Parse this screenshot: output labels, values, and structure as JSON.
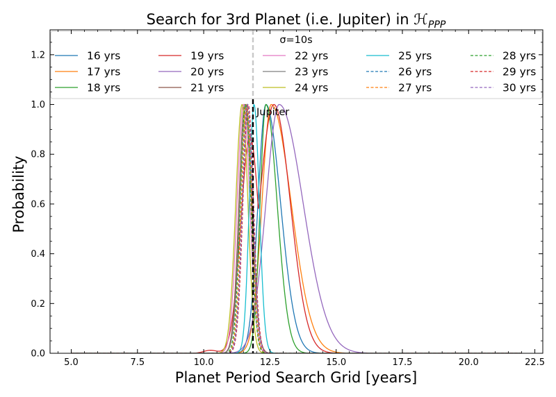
{
  "chart_data": {
    "type": "line",
    "title": "Search for 3rd Planet (i.e. Jupiter) in ",
    "title_math": "ℋ",
    "title_sub": "PPP",
    "xlabel": "Planet Period Search Grid [years]",
    "ylabel": "Probability",
    "xlim": [
      4.2,
      22.8
    ],
    "ylim": [
      0.0,
      1.3
    ],
    "xticks": [
      5.0,
      7.5,
      10.0,
      12.5,
      15.0,
      17.5,
      20.0,
      22.5
    ],
    "xtick_labels": [
      "5.0",
      "7.5",
      "10.0",
      "12.5",
      "15.0",
      "17.5",
      "20.0",
      "22.5"
    ],
    "yticks": [
      0.0,
      0.2,
      0.4,
      0.6,
      0.8,
      1.0,
      1.2
    ],
    "ytick_labels": [
      "0.0",
      "0.2",
      "0.4",
      "0.6",
      "0.8",
      "1.0",
      "1.2"
    ],
    "grid": false,
    "legend_placement": "top",
    "legend_title": "σ=10s",
    "x_range": [
      5.0,
      22.0
    ],
    "vline": {
      "x": 11.86,
      "label": "Jupiter",
      "style": "black dashed"
    },
    "vline_top": {
      "x": 11.86,
      "style": "gray dashed"
    },
    "series": [
      {
        "name": "16 yrs",
        "color": "#1f77b4",
        "dash": "solid",
        "peak": 12.35,
        "width_left": 0.3,
        "width_right": 0.55
      },
      {
        "name": "17 yrs",
        "color": "#ff7f0e",
        "dash": "solid",
        "peak": 12.55,
        "width_left": 0.35,
        "width_right": 0.75
      },
      {
        "name": "18 yrs",
        "color": "#2ca02c",
        "dash": "solid",
        "peak": 12.35,
        "width_left": 0.22,
        "width_right": 0.42
      },
      {
        "name": "19 yrs",
        "color": "#d62728",
        "dash": "solid",
        "peak": 12.65,
        "width_left": 0.55,
        "width_right": 0.62,
        "shoulder": {
          "x": 11.75,
          "h": 0.87,
          "w": 0.35
        },
        "bump": {
          "x": 10.25,
          "h": 0.012,
          "w": 0.25
        }
      },
      {
        "name": "20 yrs",
        "color": "#9467bd",
        "dash": "solid",
        "peak": 12.85,
        "width_left": 0.5,
        "width_right": 0.9
      },
      {
        "name": "21 yrs",
        "color": "#8c564b",
        "dash": "solid",
        "peak": 11.55,
        "width_left": 0.22,
        "width_right": 0.25
      },
      {
        "name": "22 yrs",
        "color": "#e377c2",
        "dash": "solid",
        "peak": 11.5,
        "width_left": 0.24,
        "width_right": 0.24
      },
      {
        "name": "23 yrs",
        "color": "#7f7f7f",
        "dash": "solid",
        "peak": 11.6,
        "width_left": 0.23,
        "width_right": 0.23
      },
      {
        "name": "24 yrs",
        "color": "#bcbd22",
        "dash": "solid",
        "peak": 11.45,
        "width_left": 0.24,
        "width_right": 0.22
      },
      {
        "name": "25 yrs",
        "color": "#17becf",
        "dash": "solid",
        "peak": 11.9,
        "width_left": 0.18,
        "width_right": 0.2
      },
      {
        "name": "26 yrs",
        "color": "#1f77b4",
        "dash": "dashed",
        "peak": 11.65,
        "width_left": 0.2,
        "width_right": 0.2
      },
      {
        "name": "27 yrs",
        "color": "#ff7f0e",
        "dash": "dashed",
        "peak": 11.62,
        "width_left": 0.2,
        "width_right": 0.2
      },
      {
        "name": "28 yrs",
        "color": "#2ca02c",
        "dash": "dashed",
        "peak": 11.58,
        "width_left": 0.2,
        "width_right": 0.2
      },
      {
        "name": "29 yrs",
        "color": "#d62728",
        "dash": "dashed",
        "peak": 11.68,
        "width_left": 0.2,
        "width_right": 0.2
      },
      {
        "name": "30 yrs",
        "color": "#9467bd",
        "dash": "dashed",
        "peak": 11.66,
        "width_left": 0.2,
        "width_right": 0.2
      }
    ]
  }
}
